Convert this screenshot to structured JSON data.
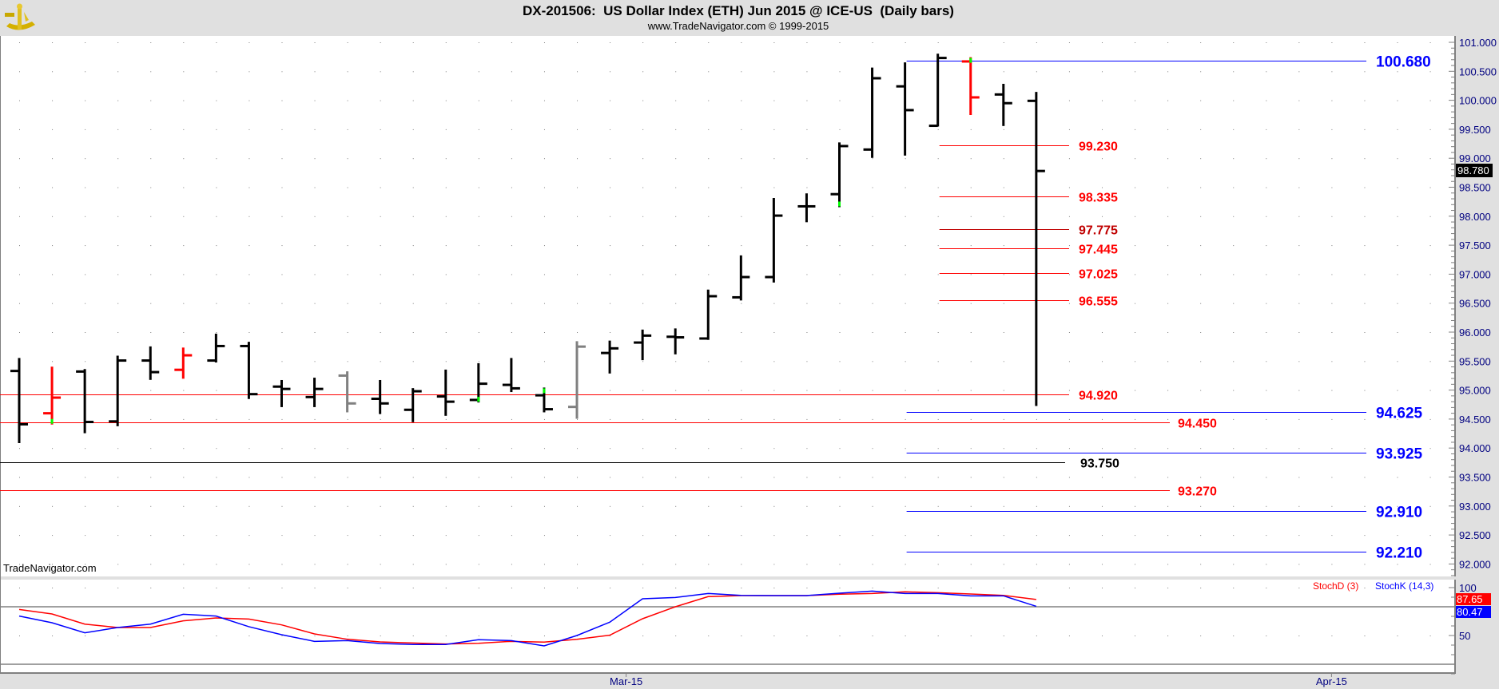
{
  "header": {
    "title": "DX-201506:  US Dollar Index (ETH) Jun 2015 @ ICE-US  (Daily bars)",
    "subtitle": "www.TradeNavigator.com © 1999-2015",
    "logo_icon": "sextant-logo-icon",
    "watermark": "TradeNavigator.com"
  },
  "colors": {
    "up_bar": "#000000",
    "down_bar": "#ff0000",
    "neutral_bar": "#808080",
    "accent": "#00ff00",
    "blue_level": "#0000ff",
    "red_level": "#ff0000",
    "black_level": "#000000",
    "axis_text": "#000080",
    "stoch_d": "#ff0000",
    "stoch_k": "#0000ff"
  },
  "chart_data": [
    {
      "type": "ohlc",
      "title": "DX-201506:  US Dollar Index (ETH) Jun 2015 @ ICE-US  (Daily bars)",
      "ylim": [
        91.8,
        101.1
      ],
      "yticks": [
        "92.000",
        "92.500",
        "93.000",
        "93.500",
        "94.000",
        "94.500",
        "95.000",
        "95.500",
        "96.000",
        "96.500",
        "97.000",
        "97.500",
        "98.000",
        "98.500",
        "99.000",
        "99.500",
        "100.000",
        "100.500",
        "101.000"
      ],
      "x_tick_labels": [
        {
          "label": "Mar-15",
          "bar": 18.5
        },
        {
          "label": "Apr-15",
          "bar": 40
        }
      ],
      "grid": "dotted",
      "last_price": "98.780",
      "bars": [
        {
          "o": 95.33,
          "h": 95.54,
          "l": 94.1,
          "c": 94.41,
          "color": "black"
        },
        {
          "o": 94.6,
          "h": 95.39,
          "l": 94.42,
          "c": 94.87,
          "color": "red",
          "accent": "low"
        },
        {
          "o": 95.32,
          "h": 95.35,
          "l": 94.27,
          "c": 94.45,
          "color": "black"
        },
        {
          "o": 94.46,
          "h": 95.58,
          "l": 94.39,
          "c": 95.51,
          "color": "black"
        },
        {
          "o": 95.51,
          "h": 95.74,
          "l": 95.19,
          "c": 95.31,
          "color": "black"
        },
        {
          "o": 95.35,
          "h": 95.72,
          "l": 95.21,
          "c": 95.6,
          "color": "red"
        },
        {
          "o": 95.51,
          "h": 95.96,
          "l": 95.49,
          "c": 95.76,
          "color": "black"
        },
        {
          "o": 95.76,
          "h": 95.82,
          "l": 94.86,
          "c": 94.93,
          "color": "black"
        },
        {
          "o": 95.06,
          "h": 95.16,
          "l": 94.72,
          "c": 95.02,
          "color": "black"
        },
        {
          "o": 94.88,
          "h": 95.2,
          "l": 94.72,
          "c": 95.02,
          "color": "black"
        },
        {
          "o": 95.25,
          "h": 95.31,
          "l": 94.63,
          "c": 94.77,
          "color": "gray"
        },
        {
          "o": 94.85,
          "h": 95.16,
          "l": 94.6,
          "c": 94.77,
          "color": "black"
        },
        {
          "o": 94.66,
          "h": 95.02,
          "l": 94.46,
          "c": 94.98,
          "color": "black"
        },
        {
          "o": 94.89,
          "h": 95.34,
          "l": 94.57,
          "c": 94.8,
          "color": "black"
        },
        {
          "o": 94.83,
          "h": 95.45,
          "l": 94.8,
          "c": 95.11,
          "color": "black",
          "accent": "low"
        },
        {
          "o": 95.09,
          "h": 95.54,
          "l": 94.98,
          "c": 95.03,
          "color": "black"
        },
        {
          "o": 94.91,
          "h": 95.03,
          "l": 94.63,
          "c": 94.67,
          "color": "black",
          "accent": "high"
        },
        {
          "o": 94.71,
          "h": 95.83,
          "l": 94.52,
          "c": 95.75,
          "color": "gray"
        },
        {
          "o": 95.64,
          "h": 95.84,
          "l": 95.3,
          "c": 95.72,
          "color": "black"
        },
        {
          "o": 95.82,
          "h": 96.03,
          "l": 95.53,
          "c": 95.94,
          "color": "black"
        },
        {
          "o": 95.92,
          "h": 96.05,
          "l": 95.63,
          "c": 95.91,
          "color": "black"
        },
        {
          "o": 95.89,
          "h": 96.72,
          "l": 95.88,
          "c": 96.62,
          "color": "black"
        },
        {
          "o": 96.6,
          "h": 97.31,
          "l": 96.56,
          "c": 96.95,
          "color": "black"
        },
        {
          "o": 96.95,
          "h": 98.3,
          "l": 96.87,
          "c": 98.01,
          "color": "black"
        },
        {
          "o": 98.17,
          "h": 98.38,
          "l": 97.91,
          "c": 98.17,
          "color": "black"
        },
        {
          "o": 98.38,
          "h": 99.26,
          "l": 98.17,
          "c": 99.21,
          "color": "black",
          "accent": "low"
        },
        {
          "o": 99.15,
          "h": 100.55,
          "l": 99.02,
          "c": 100.38,
          "color": "black"
        },
        {
          "o": 100.24,
          "h": 100.64,
          "l": 99.06,
          "c": 99.83,
          "color": "black"
        },
        {
          "o": 99.56,
          "h": 100.79,
          "l": 99.56,
          "c": 100.73,
          "color": "black"
        },
        {
          "o": 100.67,
          "h": 100.73,
          "l": 99.76,
          "c": 100.05,
          "color": "red",
          "accent": "high"
        },
        {
          "o": 100.1,
          "h": 100.27,
          "l": 99.57,
          "c": 99.95,
          "color": "black"
        },
        {
          "o": 99.99,
          "h": 100.13,
          "l": 94.74,
          "c": 98.78,
          "color": "black"
        }
      ],
      "levels": [
        {
          "value": 100.68,
          "label": "100.680",
          "color": "blue",
          "from_bar": 27
        },
        {
          "value": 99.23,
          "label": "99.230",
          "color": "red",
          "from_bar": 28
        },
        {
          "value": 98.335,
          "label": "98.335",
          "color": "red",
          "from_bar": 28
        },
        {
          "value": 97.775,
          "label": "97.775",
          "color": "darkred",
          "from_bar": 28
        },
        {
          "value": 97.445,
          "label": "97.445",
          "color": "red",
          "from_bar": 28
        },
        {
          "value": 97.025,
          "label": "97.025",
          "color": "red",
          "from_bar": 28
        },
        {
          "value": 96.555,
          "label": "96.555",
          "color": "red",
          "from_bar": 28
        },
        {
          "value": 94.92,
          "label": "94.920",
          "color": "red",
          "from_bar": 0
        },
        {
          "value": 94.625,
          "label": "94.625",
          "color": "blue",
          "from_bar": 27
        },
        {
          "value": 94.45,
          "label": "94.450",
          "color": "red",
          "from_bar": 0
        },
        {
          "value": 93.925,
          "label": "93.925",
          "color": "blue",
          "from_bar": 27
        },
        {
          "value": 93.75,
          "label": "93.750",
          "color": "black",
          "from_bar": 0
        },
        {
          "value": 93.27,
          "label": "93.270",
          "color": "red",
          "from_bar": 0
        },
        {
          "value": 92.91,
          "label": "92.910",
          "color": "blue",
          "from_bar": 27
        },
        {
          "value": 92.21,
          "label": "92.210",
          "color": "blue",
          "from_bar": 27
        }
      ]
    },
    {
      "type": "line",
      "yticks": [
        "100",
        "50"
      ],
      "reference_lines": [
        80,
        20
      ],
      "series": [
        {
          "name": "StochD (3)",
          "color": "red",
          "last": "87.65",
          "values": [
            77.2,
            72.5,
            61.9,
            58.3,
            58.3,
            65.3,
            68.3,
            67.2,
            61.1,
            51.7,
            46.1,
            43.3,
            42.2,
            41.1,
            41.9,
            43.9,
            43.1,
            46.0,
            50.3,
            67.5,
            80.0,
            90.6,
            91.7,
            91.7,
            91.7,
            93.1,
            93.9,
            95.6,
            94.7,
            93.3,
            91.9,
            87.65
          ]
        },
        {
          "name": "StochK (14,3)",
          "color": "blue",
          "last": "80.47",
          "values": [
            70.3,
            63.3,
            52.8,
            58.3,
            61.9,
            72.2,
            70.3,
            59.2,
            50.8,
            43.9,
            44.7,
            41.7,
            40.6,
            40.6,
            45.6,
            44.7,
            39.2,
            50.0,
            63.9,
            88.3,
            89.7,
            93.9,
            91.9,
            91.7,
            91.7,
            94.2,
            96.4,
            93.9,
            93.9,
            91.4,
            91.4,
            80.47
          ]
        }
      ]
    }
  ]
}
